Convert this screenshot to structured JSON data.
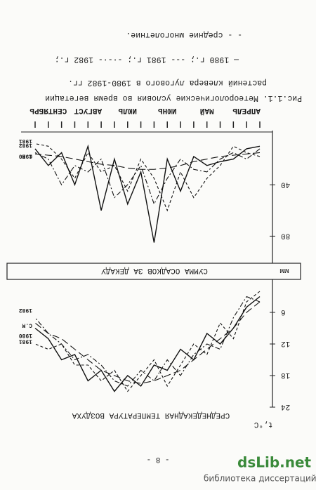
{
  "page_number": "- 8 -",
  "caption": [
    "Рис.1.1. Метеорологические условия во время вегетации",
    "растений клевера лугового в 1980-1982 гг.",
    "— 1980 г.; --- 1981 г.; -·-·- 1982 г.;",
    "- - средние многолетние."
  ],
  "watermark": {
    "site": "dsLib.net",
    "tagline": "библиотека диссертаций"
  },
  "chart_data": [
    {
      "type": "line",
      "title": "СРЕДНЕДЕКАДНАЯ ТЕМПЕРАТУРА ВОЗДУХА",
      "ylabel": "t,°C",
      "categories": [
        null,
        null,
        null,
        null,
        null,
        null,
        null,
        null,
        null,
        null,
        null,
        null,
        null,
        null,
        null,
        null,
        null,
        null
      ],
      "ylim": [
        0,
        24
      ],
      "yticks": [
        6,
        12,
        18,
        24
      ],
      "series": [
        {
          "name": "1980",
          "color": "#111111",
          "style": "solid",
          "values": [
            3,
            5,
            9,
            12,
            10,
            15,
            13,
            17,
            16,
            20,
            18,
            21,
            17,
            19,
            14,
            15,
            11,
            9
          ]
        },
        {
          "name": "С.М",
          "color": "#111111",
          "style": "longdash",
          "values": [
            4,
            6,
            9,
            11,
            13,
            15,
            17,
            18,
            19,
            19.5,
            19,
            18,
            17,
            15,
            13,
            11,
            10,
            8
          ]
        },
        {
          "name": "1981",
          "color": "#111111",
          "style": "dashed",
          "values": [
            2,
            4,
            11,
            8,
            14,
            12,
            16,
            20,
            15,
            18,
            21,
            17,
            19,
            16,
            16,
            12,
            13,
            12
          ]
        },
        {
          "name": "1982",
          "color": "#111111",
          "style": "dashdot",
          "values": [
            4,
            3,
            7,
            13,
            12,
            14,
            18,
            15,
            19,
            17,
            20,
            19,
            16,
            14,
            15,
            12,
            10,
            7
          ]
        }
      ]
    },
    {
      "type": "line",
      "title": "СУММА ОСАДКОВ ЗА ДЕКАДУ",
      "ylabel": "мм",
      "categories": [
        null,
        "АПРЕЛЬ",
        null,
        null,
        "МАЙ",
        null,
        null,
        "ИЮНЬ",
        null,
        null,
        "ИЮЛЬ",
        null,
        null,
        "АВГУСТ",
        null,
        null,
        "СЕНТЯБРЬ",
        null
      ],
      "ylim": [
        0,
        100
      ],
      "yticks": [
        40,
        80
      ],
      "series": [
        {
          "name": "1980",
          "color": "#111111",
          "style": "solid",
          "values": [
            10,
            12,
            20,
            22,
            25,
            18,
            45,
            20,
            85,
            30,
            55,
            20,
            60,
            10,
            40,
            15,
            25,
            12
          ]
        },
        {
          "name": "С.М",
          "color": "#111111",
          "style": "longdash",
          "values": [
            15,
            16,
            17,
            18,
            20,
            22,
            25,
            27,
            28,
            28,
            27,
            25,
            24,
            22,
            20,
            18,
            17,
            16
          ]
        },
        {
          "name": "1981",
          "color": "#111111",
          "style": "dashed",
          "values": [
            18,
            15,
            10,
            25,
            35,
            50,
            30,
            60,
            35,
            20,
            45,
            25,
            30,
            15,
            35,
            20,
            10,
            8
          ]
        },
        {
          "name": "1982",
          "color": "#111111",
          "style": "dashdot",
          "values": [
            12,
            20,
            15,
            20,
            30,
            28,
            20,
            35,
            55,
            25,
            40,
            50,
            20,
            30,
            25,
            40,
            20,
            15
          ]
        }
      ]
    }
  ]
}
